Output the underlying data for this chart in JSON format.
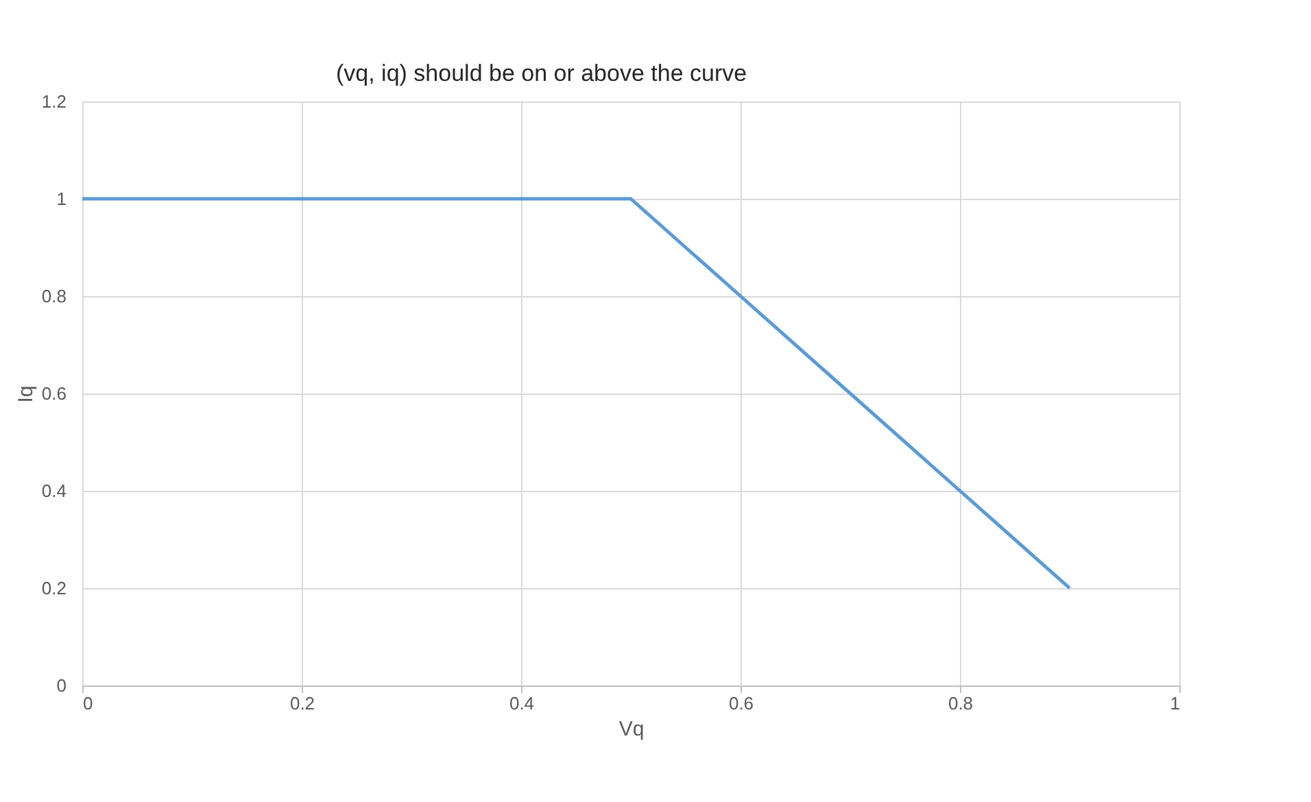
{
  "chart_data": {
    "type": "line",
    "xlabel": "Vq",
    "ylabel": "Iq",
    "x": [
      0,
      0.5,
      0.6,
      0.8,
      0.9
    ],
    "series": [
      {
        "color": "#5b9bd5",
        "values": [
          1,
          1,
          0.8,
          0.4,
          0.2
        ]
      }
    ],
    "xlim": [
      0,
      1
    ],
    "xticks": [
      0,
      0.2,
      0.4,
      0.6,
      0.8,
      1
    ],
    "ylim": [
      0,
      1.2
    ],
    "yticks": [
      0,
      0.2,
      0.4,
      0.6,
      0.8,
      1,
      1.2
    ],
    "grid": true,
    "legend": false,
    "marker": "none",
    "line_style": "solid",
    "annotations": [
      "(vq, iq) should be on or above the curve"
    ]
  }
}
